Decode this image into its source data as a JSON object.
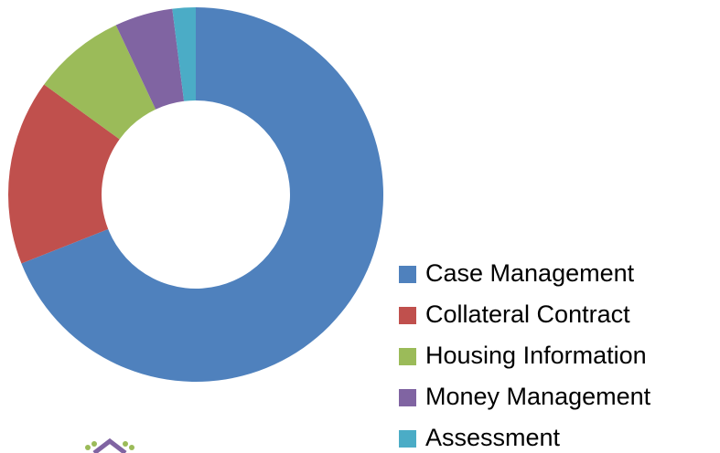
{
  "chart_data": {
    "type": "donut",
    "categories": [
      "Case Management",
      "Collateral Contract",
      "Housing Information",
      "Money Management",
      "Assessment"
    ],
    "values": [
      69,
      16,
      8,
      5,
      2
    ],
    "colors": [
      "#4f81bd",
      "#c0504d",
      "#9bbb59",
      "#8064a2",
      "#4bacc6"
    ],
    "legend": "right"
  }
}
